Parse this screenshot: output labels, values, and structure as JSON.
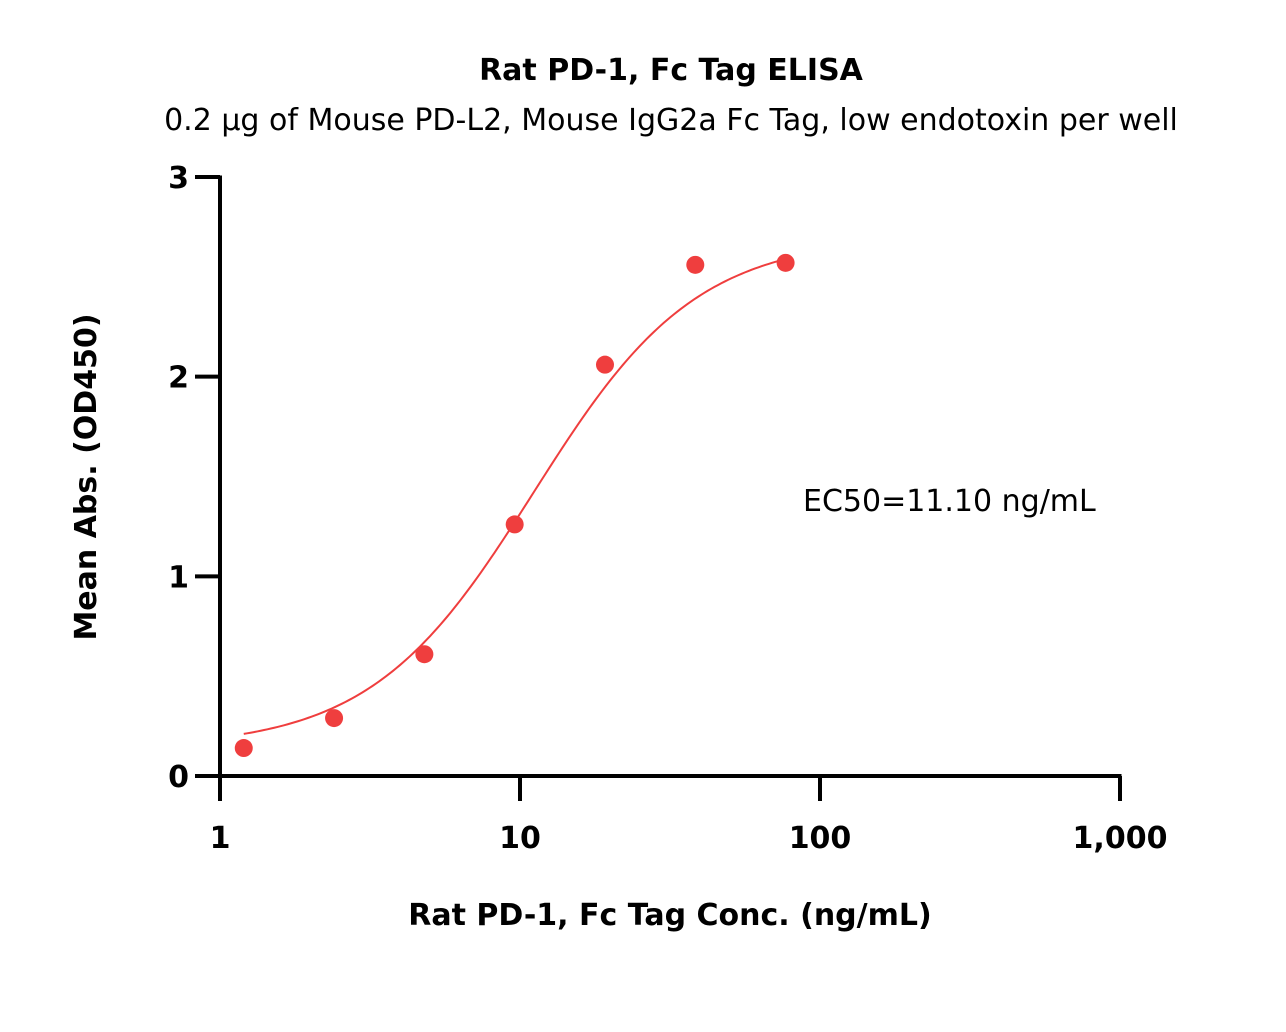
{
  "chart_data": {
    "type": "scatter",
    "title": "Rat PD-1, Fc Tag ELISA",
    "subtitle": "0.2 μg of Mouse PD-L2, Mouse IgG2a Fc Tag, low endotoxin per well",
    "xlabel": "Rat PD-1, Fc Tag Conc. (ng/mL)",
    "ylabel": "Mean Abs. (OD450)",
    "x_scale": "log",
    "xlim": [
      1,
      1000
    ],
    "ylim": [
      0,
      3
    ],
    "x_ticks": [
      1,
      10,
      100,
      1000
    ],
    "x_tick_labels": [
      "1",
      "10",
      "100",
      "1,000"
    ],
    "y_ticks": [
      0,
      1,
      2,
      3
    ],
    "y_tick_labels": [
      "0",
      "1",
      "2",
      "3"
    ],
    "grid": false,
    "annotation": "EC50=11.10 ng/mL",
    "series": [
      {
        "x": [
          1.2,
          2.4,
          4.8,
          9.6,
          19.2,
          38.4,
          76.8
        ],
        "y": [
          0.14,
          0.29,
          0.61,
          1.26,
          2.06,
          2.56,
          2.57
        ],
        "color": "#ef3e3e"
      }
    ],
    "fit_curve": {
      "type": "4PL",
      "bottom": 0.14,
      "top": 2.7,
      "ec50": 11.1,
      "hill": 1.6,
      "x_range": [
        1.2,
        76.8
      ],
      "color": "#ef3e3e"
    }
  }
}
